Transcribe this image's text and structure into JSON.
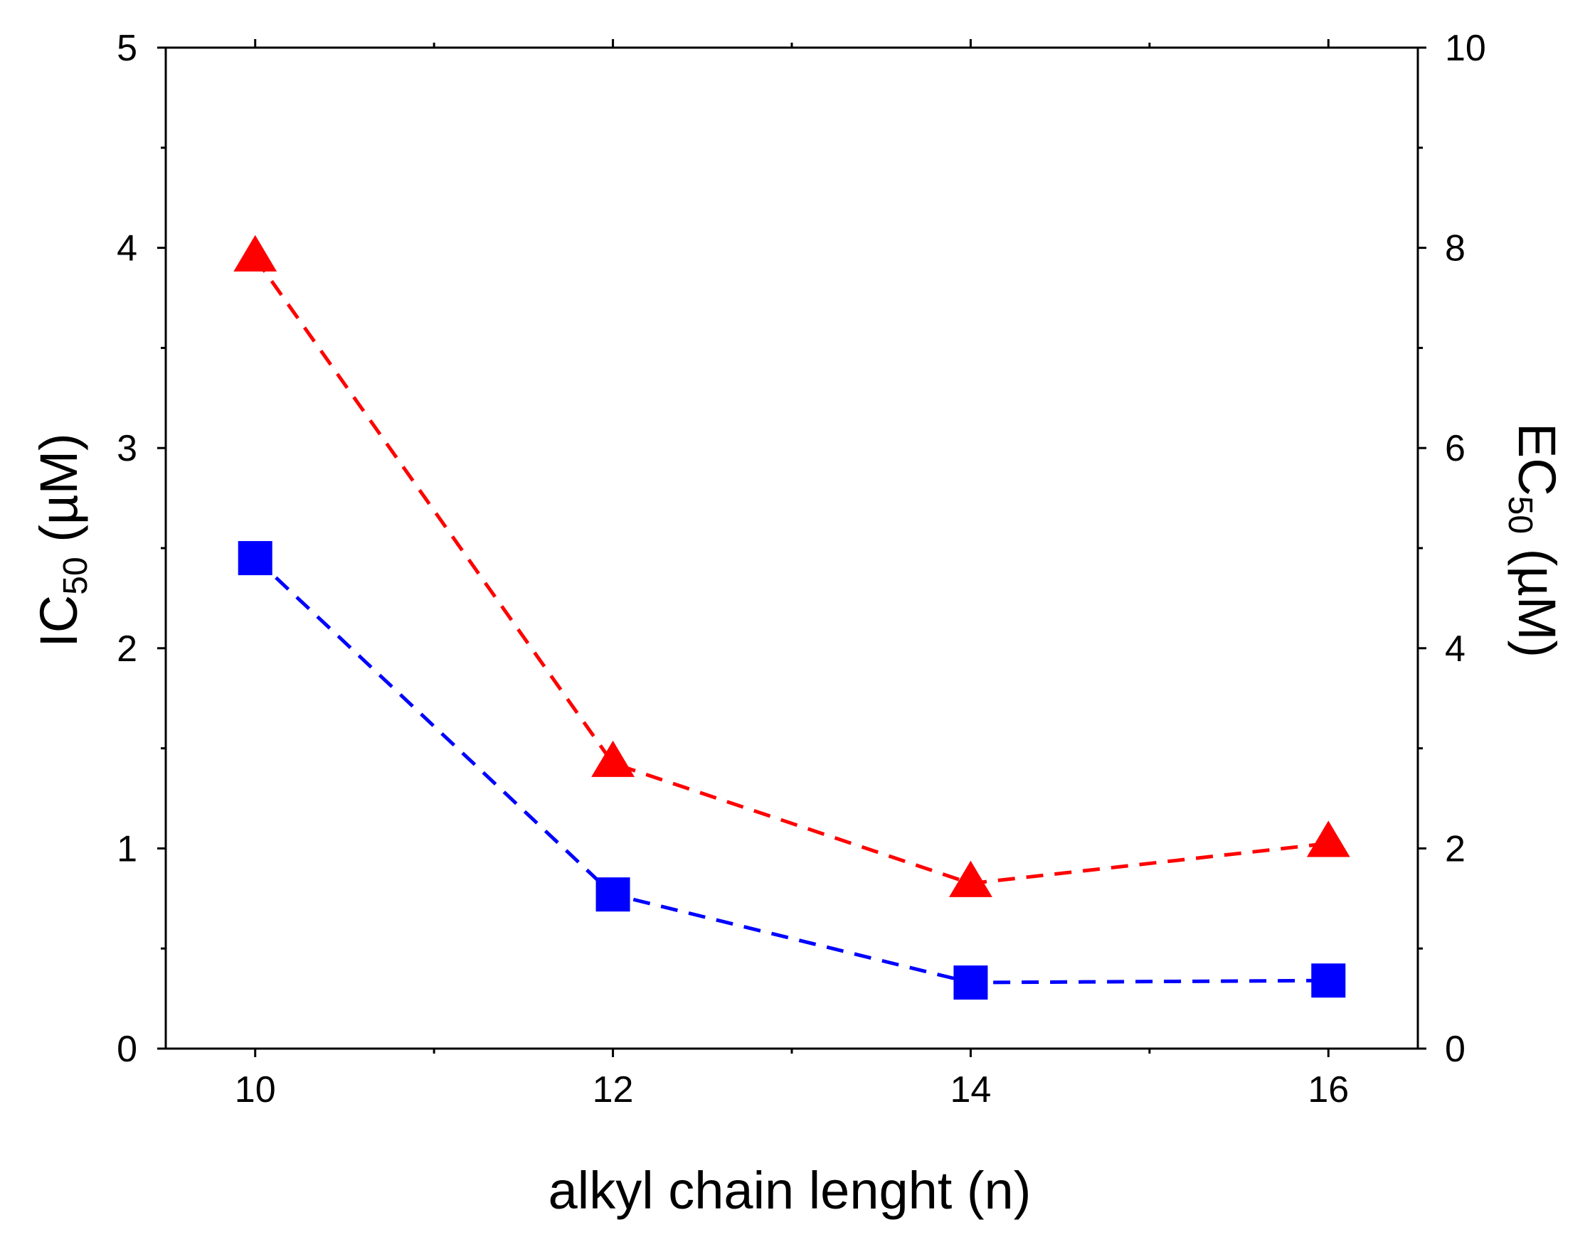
{
  "chart_data": {
    "type": "line",
    "title": "",
    "xlabel": "alkyl chain lenght (n)",
    "ylabel": {
      "main": "IC",
      "sub": "50",
      "unit": " (µM)"
    },
    "y2label": {
      "main": "EC",
      "sub": "50",
      "unit": " (µM)"
    },
    "xlim": [
      9.5,
      16.5
    ],
    "ylim": [
      0,
      5
    ],
    "y2lim": [
      0,
      10
    ],
    "x_ticks": [
      10,
      12,
      14,
      16
    ],
    "x_tick_labels": [
      "10",
      "12",
      "14",
      "16"
    ],
    "y_ticks": [
      0,
      1,
      2,
      3,
      4,
      5
    ],
    "y_tick_labels": [
      "0",
      "1",
      "2",
      "3",
      "4",
      "5"
    ],
    "y2_ticks": [
      0,
      2,
      4,
      6,
      8,
      10
    ],
    "y2_tick_labels": [
      "0",
      "2",
      "4",
      "6",
      "8",
      "10"
    ],
    "grid": false,
    "series": [
      {
        "name": "IC50",
        "axis": "left",
        "marker": "square",
        "line": "dashed",
        "color": "#0000ff",
        "x": [
          10,
          12,
          14,
          16
        ],
        "values": [
          2.45,
          0.77,
          0.33,
          0.34
        ]
      },
      {
        "name": "EC50",
        "axis": "right",
        "marker": "triangle",
        "line": "dashed",
        "color": "#ff0000",
        "x": [
          10,
          12,
          14,
          16
        ],
        "values": [
          7.9,
          2.85,
          1.65,
          2.05
        ]
      }
    ]
  }
}
